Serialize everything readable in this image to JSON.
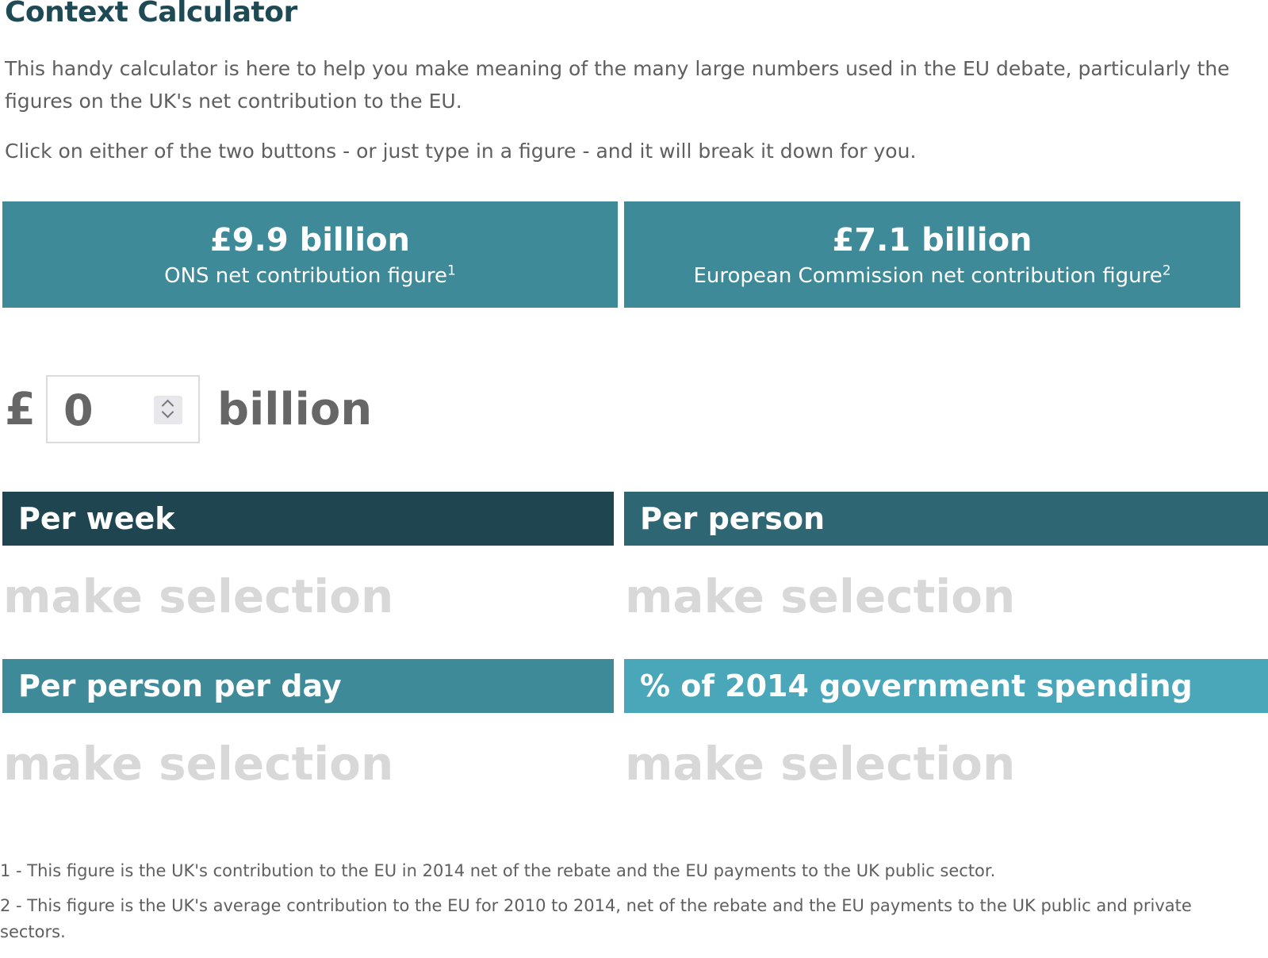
{
  "title": "Context Calculator",
  "intro": {
    "paragraph1": "This handy calculator is here to help you make meaning of the many large numbers used in the EU debate, particularly the figures on the UK's net contribution to the EU.",
    "paragraph2": "Click on either of the two buttons - or just type in a figure - and it will break it down for you."
  },
  "buttons": [
    {
      "amount": "£9.9 billion",
      "label": "ONS net contribution figure",
      "footnote_ref": "1"
    },
    {
      "amount": "£7.1 billion",
      "label": "European Commission net contribution figure",
      "footnote_ref": "2"
    }
  ],
  "calculator": {
    "currency_symbol": "£",
    "value": "0",
    "unit": "billion"
  },
  "results": [
    {
      "heading": "Per week",
      "value": "make selection",
      "color": "#1f4650"
    },
    {
      "heading": "Per person",
      "value": "make selection",
      "color": "#2e6673"
    },
    {
      "heading": "Per person per day",
      "value": "make selection",
      "color": "#3e8a99"
    },
    {
      "heading": "% of 2014 government spending",
      "value": "make selection",
      "color": "#4aa6b9"
    }
  ],
  "footnotes": [
    "1 - This figure is the UK's contribution to the EU in 2014 net of the rebate and the EU payments to the UK public sector.",
    "2 - This figure is the UK's average contribution to the EU for 2010 to 2014, net of the rebate and the EU payments to the UK public and private sectors."
  ],
  "colors": {
    "title": "#1e4a55",
    "button_bg": "#3e8a99",
    "placeholder_text": "#d8d8d8"
  },
  "icons": {
    "stepper": "chevron-up-down-icon"
  }
}
